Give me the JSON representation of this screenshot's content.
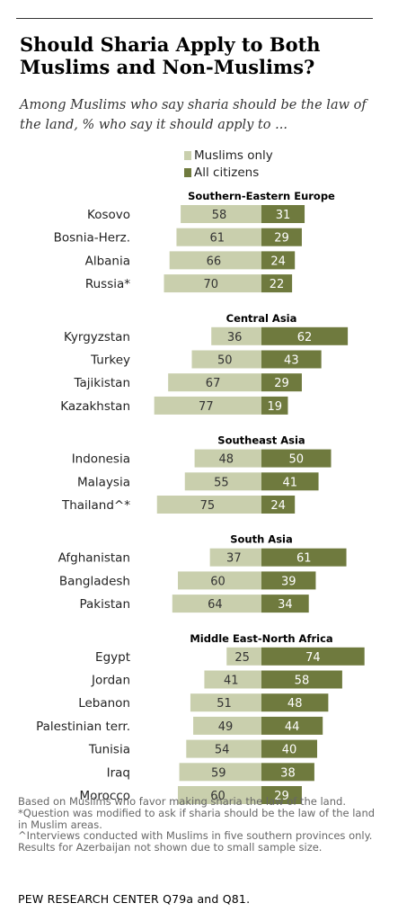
{
  "title": "Should Sharia Apply to Both Muslims and Non-Muslims?",
  "subtitle": "Among Muslims who say sharia should be the law of the land, % who say it should apply to ...",
  "legend": {
    "muslims_only": "Muslims only",
    "all_citizens": "All citizens"
  },
  "colors": {
    "muslims_only": "#c9cfad",
    "all_citizens": "#6f7a3e",
    "muslims_only_text": "#333333",
    "all_citizens_text": "#ffffff"
  },
  "chart_data": {
    "type": "bar",
    "orientation": "horizontal-diverging",
    "series": [
      {
        "name": "Muslims only"
      },
      {
        "name": "All citizens"
      }
    ],
    "groups": [
      {
        "region": "Southern-Eastern  Europe",
        "rows": [
          {
            "country": "Kosovo",
            "muslims_only": 58,
            "all_citizens": 31
          },
          {
            "country": "Bosnia-Herz.",
            "muslims_only": 61,
            "all_citizens": 29
          },
          {
            "country": "Albania",
            "muslims_only": 66,
            "all_citizens": 24
          },
          {
            "country": "Russia*",
            "muslims_only": 70,
            "all_citizens": 22
          }
        ]
      },
      {
        "region": "Central Asia",
        "rows": [
          {
            "country": "Kyrgyzstan",
            "muslims_only": 36,
            "all_citizens": 62
          },
          {
            "country": "Turkey",
            "muslims_only": 50,
            "all_citizens": 43
          },
          {
            "country": "Tajikistan",
            "muslims_only": 67,
            "all_citizens": 29
          },
          {
            "country": "Kazakhstan",
            "muslims_only": 77,
            "all_citizens": 19
          }
        ]
      },
      {
        "region": "Southeast  Asia",
        "rows": [
          {
            "country": "Indonesia",
            "muslims_only": 48,
            "all_citizens": 50
          },
          {
            "country": "Malaysia",
            "muslims_only": 55,
            "all_citizens": 41
          },
          {
            "country": "Thailand^*",
            "muslims_only": 75,
            "all_citizens": 24
          }
        ]
      },
      {
        "region": "South Asia",
        "rows": [
          {
            "country": "Afghanistan",
            "muslims_only": 37,
            "all_citizens": 61
          },
          {
            "country": "Bangladesh",
            "muslims_only": 60,
            "all_citizens": 39
          },
          {
            "country": "Pakistan",
            "muslims_only": 64,
            "all_citizens": 34
          }
        ]
      },
      {
        "region": "Middle East-North  Africa",
        "rows": [
          {
            "country": "Egypt",
            "muslims_only": 25,
            "all_citizens": 74
          },
          {
            "country": "Jordan",
            "muslims_only": 41,
            "all_citizens": 58
          },
          {
            "country": "Lebanon",
            "muslims_only": 51,
            "all_citizens": 48
          },
          {
            "country": "Palestinian terr.",
            "muslims_only": 49,
            "all_citizens": 44
          },
          {
            "country": "Tunisia",
            "muslims_only": 54,
            "all_citizens": 40
          },
          {
            "country": "Iraq",
            "muslims_only": 59,
            "all_citizens": 38
          },
          {
            "country": "Morocco",
            "muslims_only": 60,
            "all_citizens": 29
          }
        ]
      }
    ]
  },
  "notes": [
    "Based on Muslims who favor making sharia the law of the land.",
    "*Question was modified to ask if sharia should be the law of the land in Muslim areas.",
    "^Interviews conducted with Muslims in five southern provinces only.",
    "Results for Azerbaijan not shown due to small sample size."
  ],
  "source": "PEW RESEARCH CENTER Q79a and Q81."
}
